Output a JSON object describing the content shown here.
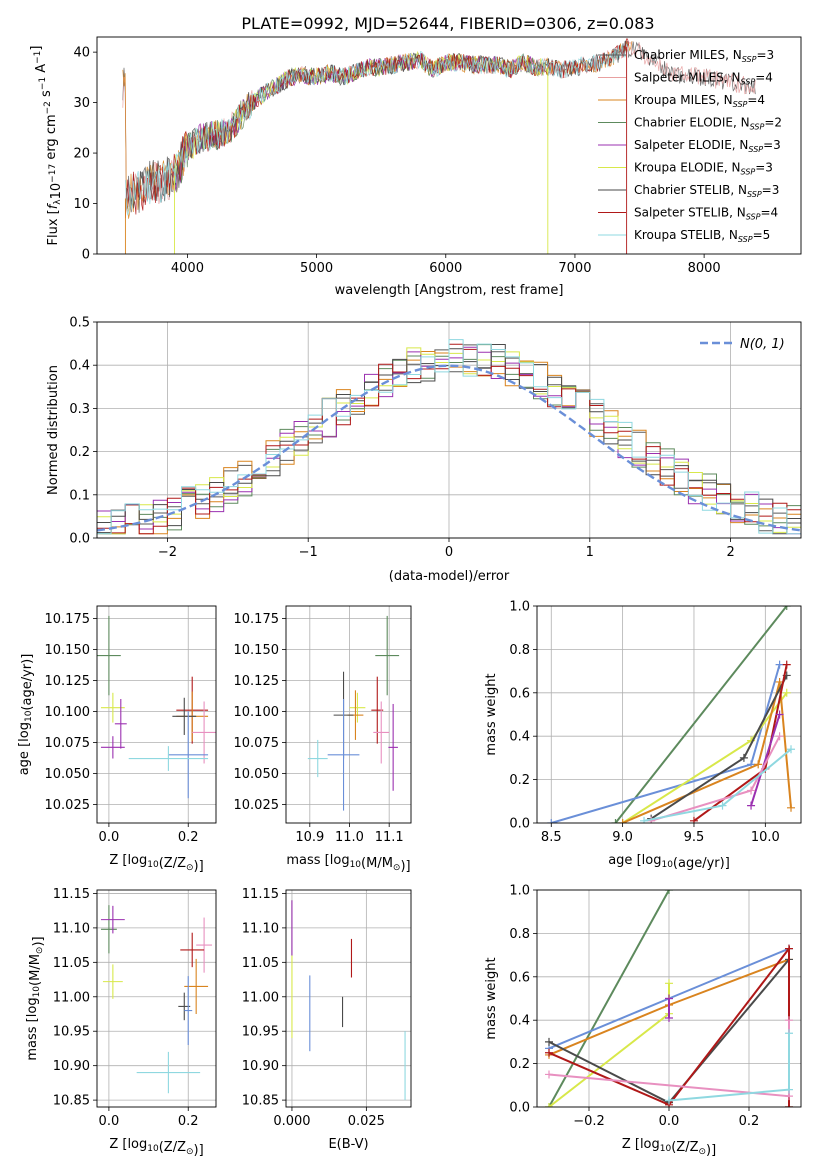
{
  "figure": {
    "title": "PLATE=0992, MJD=52644, FIBERID=0306, z=0.083"
  },
  "colors": {
    "chabrier_miles": "#5a5a5a",
    "salpeter_miles": "#e8a0a0",
    "kroupa_miles": "#d9841f",
    "chabrier_elodie": "#5d8a5d",
    "salpeter_elodie": "#9b30b0",
    "kroupa_elodie": "#d8e84a",
    "chabrier_stelib": "#4a4a4a",
    "salpeter_stelib": "#b01818",
    "kroupa_stelib": "#8fd8e0",
    "normal_curve": "#6a8fd8",
    "pink": "#e890c0",
    "blue": "#6a8fd8"
  },
  "chart_data": [
    {
      "id": "spectrum",
      "type": "line",
      "xlabel": "wavelength [Angstrom, rest frame]",
      "ylabel": "Flux [f_λ10^-17 erg cm^-2 s^-1 A^-1]",
      "xlim": [
        3300,
        8750
      ],
      "ylim": [
        0,
        43
      ],
      "xticks": [
        4000,
        5000,
        6000,
        7000,
        8000
      ],
      "yticks": [
        0,
        10,
        20,
        30,
        40
      ],
      "grid": false,
      "legend_position": "top-right",
      "legend": [
        {
          "label": "Chabrier MILES, N",
          "sub": "SSP",
          "suffix": "=3",
          "color_key": "chabrier_miles"
        },
        {
          "label": "Salpeter MILES, N",
          "sub": "SSP",
          "suffix": "=4",
          "color_key": "salpeter_miles"
        },
        {
          "label": "Kroupa MILES, N",
          "sub": "SSP",
          "suffix": "=4",
          "color_key": "kroupa_miles"
        },
        {
          "label": "Chabrier ELODIE, N",
          "sub": "SSP",
          "suffix": "=2",
          "color_key": "chabrier_elodie"
        },
        {
          "label": "Salpeter ELODIE, N",
          "sub": "SSP",
          "suffix": "=3",
          "color_key": "salpeter_elodie"
        },
        {
          "label": "Kroupa ELODIE, N",
          "sub": "SSP",
          "suffix": "=3",
          "color_key": "kroupa_elodie"
        },
        {
          "label": "Chabrier STELIB, N",
          "sub": "SSP",
          "suffix": "=3",
          "color_key": "chabrier_stelib"
        },
        {
          "label": "Salpeter STELIB, N",
          "sub": "SSP",
          "suffix": "=4",
          "color_key": "salpeter_stelib"
        },
        {
          "label": "Kroupa STELIB, N",
          "sub": "SSP",
          "suffix": "=5",
          "color_key": "kroupa_stelib"
        }
      ],
      "continuum": [
        [
          3520,
          11
        ],
        [
          3600,
          12
        ],
        [
          3700,
          14
        ],
        [
          3800,
          14.5
        ],
        [
          3900,
          15.5
        ],
        [
          4000,
          21
        ],
        [
          4100,
          23
        ],
        [
          4200,
          23.5
        ],
        [
          4300,
          24
        ],
        [
          4400,
          27
        ],
        [
          4500,
          30
        ],
        [
          4600,
          32
        ],
        [
          4700,
          33.5
        ],
        [
          4800,
          35
        ],
        [
          4900,
          35.5
        ],
        [
          5000,
          35
        ],
        [
          5100,
          36
        ],
        [
          5200,
          35
        ],
        [
          5300,
          36
        ],
        [
          5400,
          37
        ],
        [
          5500,
          37
        ],
        [
          5600,
          37.5
        ],
        [
          5700,
          38
        ],
        [
          5800,
          38.5
        ],
        [
          5900,
          36.5
        ],
        [
          6000,
          38
        ],
        [
          6100,
          38
        ],
        [
          6200,
          37.5
        ],
        [
          6300,
          37.5
        ],
        [
          6400,
          37.5
        ],
        [
          6500,
          36.5
        ],
        [
          6600,
          38
        ],
        [
          6700,
          37
        ],
        [
          6800,
          37
        ],
        [
          6900,
          36.5
        ],
        [
          7000,
          37
        ],
        [
          7100,
          37.5
        ],
        [
          7200,
          38
        ],
        [
          7300,
          39
        ],
        [
          7400,
          41
        ],
        [
          7500,
          40
        ],
        [
          7600,
          38
        ],
        [
          7700,
          36.5
        ],
        [
          7800,
          35.5
        ],
        [
          7900,
          35.5
        ],
        [
          8000,
          35
        ],
        [
          8100,
          34.5
        ],
        [
          8200,
          34
        ],
        [
          8300,
          33.5
        ],
        [
          8400,
          33
        ]
      ],
      "series": [
        {
          "name": "Chabrier MILES",
          "range": [
            3500,
            8400
          ],
          "color_key": "chabrier_miles"
        },
        {
          "name": "Salpeter MILES",
          "range": [
            3500,
            8400
          ],
          "color_key": "salpeter_miles"
        },
        {
          "name": "Kroupa MILES",
          "range": [
            3500,
            7450
          ],
          "color_key": "kroupa_miles"
        },
        {
          "name": "Chabrier ELODIE",
          "range": [
            3900,
            6800
          ],
          "color_key": "chabrier_elodie"
        },
        {
          "name": "Salpeter ELODIE",
          "range": [
            3900,
            6800
          ],
          "color_key": "salpeter_elodie"
        },
        {
          "name": "Kroupa ELODIE",
          "range": [
            3900,
            6800
          ],
          "color_key": "kroupa_elodie"
        },
        {
          "name": "Chabrier STELIB",
          "range": [
            3520,
            7400
          ],
          "color_key": "chabrier_stelib"
        },
        {
          "name": "Salpeter STELIB",
          "range": [
            3520,
            7420
          ],
          "color_key": "salpeter_stelib"
        },
        {
          "name": "Kroupa STELIB",
          "range": [
            3520,
            7400
          ],
          "color_key": "kroupa_stelib"
        }
      ]
    },
    {
      "id": "residuals",
      "type": "line",
      "xlabel": "(data-model)/error",
      "ylabel": "Normed distribution",
      "xlim": [
        -2.5,
        2.5
      ],
      "ylim": [
        0,
        0.5
      ],
      "xticks": [
        -2,
        -1,
        0,
        1,
        2
      ],
      "yticks": [
        0.0,
        0.1,
        0.2,
        0.3,
        0.4,
        0.5
      ],
      "grid": true,
      "legend_position": "top-right",
      "legend_label": "N(0, 1)",
      "bin_edges_start": -2.5,
      "bin_width": 0.1,
      "normal": {
        "mean": 0,
        "sigma": 1,
        "color_key": "normal_curve"
      },
      "histograms": [
        {
          "color_key": "chabrier_miles",
          "seed": 1
        },
        {
          "color_key": "kroupa_miles",
          "seed": 2
        },
        {
          "color_key": "chabrier_elodie",
          "seed": 3
        },
        {
          "color_key": "salpeter_elodie",
          "seed": 4
        },
        {
          "color_key": "kroupa_elodie",
          "seed": 5
        },
        {
          "color_key": "chabrier_stelib",
          "seed": 6
        },
        {
          "color_key": "salpeter_stelib",
          "seed": 7
        },
        {
          "color_key": "kroupa_stelib",
          "seed": 8
        }
      ]
    },
    {
      "id": "age_vs_Z",
      "type": "scatter",
      "xlabel": "Z [log10(Z/Z☉)]",
      "ylabel": "age [log10(age/yr)]",
      "xlim": [
        -0.03,
        0.27
      ],
      "ylim": [
        10.01,
        10.185
      ],
      "xticks": [
        0.0,
        0.2
      ],
      "yticks": [
        10.025,
        10.05,
        10.075,
        10.1,
        10.125,
        10.15,
        10.175
      ],
      "grid": true,
      "points": [
        {
          "x": 0.0,
          "y": 10.145,
          "xerr": 0.03,
          "yerr": 0.032,
          "color_key": "chabrier_elodie"
        },
        {
          "x": 0.01,
          "y": 10.103,
          "xerr": 0.03,
          "yerr": 0.012,
          "color_key": "kroupa_elodie"
        },
        {
          "x": 0.01,
          "y": 10.071,
          "xerr": 0.03,
          "yerr": 0.009,
          "color_key": "salpeter_elodie"
        },
        {
          "x": 0.03,
          "y": 10.09,
          "xerr": 0.015,
          "yerr": 0.02,
          "color_key": "salpeter_elodie"
        },
        {
          "x": 0.21,
          "y": 10.101,
          "xerr": 0.04,
          "yerr": 0.027,
          "color_key": "salpeter_stelib"
        },
        {
          "x": 0.21,
          "y": 10.096,
          "xerr": 0.04,
          "yerr": 0.02,
          "color_key": "kroupa_miles"
        },
        {
          "x": 0.19,
          "y": 10.096,
          "xerr": 0.03,
          "yerr": 0.015,
          "color_key": "chabrier_stelib"
        },
        {
          "x": 0.24,
          "y": 10.083,
          "xerr": 0.03,
          "yerr": 0.025,
          "color_key": "pink"
        },
        {
          "x": 0.2,
          "y": 10.065,
          "xerr": 0.05,
          "yerr": 0.035,
          "color_key": "blue"
        },
        {
          "x": 0.15,
          "y": 10.062,
          "xerr": 0.1,
          "yerr": 0.01,
          "color_key": "kroupa_stelib"
        }
      ]
    },
    {
      "id": "age_vs_mass",
      "type": "scatter",
      "xlabel": "mass [log10(M/M☉)]",
      "ylabel": "",
      "xlim": [
        10.84,
        11.155
      ],
      "ylim": [
        10.01,
        10.185
      ],
      "xticks": [
        10.9,
        11.0,
        11.1
      ],
      "yticks": [
        10.025,
        10.05,
        10.075,
        10.1,
        10.125,
        10.15,
        10.175
      ],
      "grid": true,
      "points": [
        {
          "x": 11.095,
          "y": 10.145,
          "xerr": 0.03,
          "yerr": 0.032,
          "color_key": "chabrier_elodie"
        },
        {
          "x": 11.02,
          "y": 10.103,
          "xerr": 0.02,
          "yerr": 0.012,
          "color_key": "kroupa_elodie"
        },
        {
          "x": 11.11,
          "y": 10.071,
          "xerr": 0.012,
          "yerr": 0.035,
          "color_key": "salpeter_elodie"
        },
        {
          "x": 11.07,
          "y": 10.101,
          "xerr": 0.015,
          "yerr": 0.027,
          "color_key": "salpeter_stelib"
        },
        {
          "x": 11.015,
          "y": 10.097,
          "xerr": 0.02,
          "yerr": 0.02,
          "color_key": "kroupa_miles"
        },
        {
          "x": 10.985,
          "y": 10.097,
          "xerr": 0.025,
          "yerr": 0.035,
          "color_key": "chabrier_stelib"
        },
        {
          "x": 11.08,
          "y": 10.083,
          "xerr": 0.02,
          "yerr": 0.025,
          "color_key": "pink"
        },
        {
          "x": 10.92,
          "y": 10.062,
          "xerr": 0.025,
          "yerr": 0.015,
          "color_key": "kroupa_stelib"
        },
        {
          "x": 10.985,
          "y": 10.065,
          "xerr": 0.04,
          "yerr": 0.045,
          "color_key": "blue"
        }
      ]
    },
    {
      "id": "weight_vs_age",
      "type": "line",
      "xlabel": "age [log10(age/yr)]",
      "ylabel": "mass weight",
      "xlim": [
        8.4,
        10.25
      ],
      "ylim": [
        0,
        1.0
      ],
      "xticks": [
        8.5,
        9.0,
        9.5,
        10.0
      ],
      "yticks": [
        0.0,
        0.2,
        0.4,
        0.6,
        0.8,
        1.0
      ],
      "grid": true,
      "series": [
        {
          "color_key": "chabrier_elodie",
          "x": [
            8.95,
            10.15
          ],
          "y": [
            0.0,
            1.0
          ]
        },
        {
          "color_key": "blue",
          "x": [
            8.5,
            9.9,
            10.1
          ],
          "y": [
            0.0,
            0.27,
            0.73
          ]
        },
        {
          "color_key": "kroupa_elodie",
          "x": [
            9.0,
            9.9,
            10.15
          ],
          "y": [
            0.0,
            0.38,
            0.6
          ]
        },
        {
          "color_key": "kroupa_miles",
          "x": [
            9.0,
            9.95,
            10.1,
            10.18
          ],
          "y": [
            0.0,
            0.27,
            0.65,
            0.07
          ]
        },
        {
          "color_key": "chabrier_stelib",
          "x": [
            9.2,
            9.85,
            10.15
          ],
          "y": [
            0.02,
            0.3,
            0.68
          ]
        },
        {
          "color_key": "salpeter_stelib",
          "x": [
            9.5,
            10.0,
            10.15
          ],
          "y": [
            0.01,
            0.25,
            0.73
          ]
        },
        {
          "color_key": "salpeter_elodie",
          "x": [
            9.9,
            10.1
          ],
          "y": [
            0.08,
            0.5
          ]
        },
        {
          "color_key": "pink",
          "x": [
            9.2,
            9.9,
            10.1
          ],
          "y": [
            0.01,
            0.15,
            0.4
          ]
        },
        {
          "color_key": "kroupa_stelib",
          "x": [
            9.15,
            9.7,
            10.18
          ],
          "y": [
            0.01,
            0.08,
            0.34
          ]
        }
      ]
    },
    {
      "id": "mass_vs_Z",
      "type": "scatter",
      "xlabel": "Z [log10(Z/Z☉)]",
      "ylabel": "mass [log10(M/M☉)]",
      "xlim": [
        -0.03,
        0.27
      ],
      "ylim": [
        10.84,
        11.155
      ],
      "xticks": [
        0.0,
        0.2
      ],
      "yticks": [
        10.85,
        10.9,
        10.95,
        11.0,
        11.05,
        11.1,
        11.15
      ],
      "grid": true,
      "points": [
        {
          "x": 0.0,
          "y": 11.098,
          "xerr": 0.02,
          "yerr": 0.035,
          "color_key": "chabrier_elodie"
        },
        {
          "x": 0.01,
          "y": 11.112,
          "xerr": 0.03,
          "yerr": 0.02,
          "color_key": "salpeter_elodie"
        },
        {
          "x": 0.01,
          "y": 11.022,
          "xerr": 0.025,
          "yerr": 0.025,
          "color_key": "kroupa_elodie"
        },
        {
          "x": 0.24,
          "y": 11.075,
          "xerr": 0.02,
          "yerr": 0.04,
          "color_key": "pink"
        },
        {
          "x": 0.21,
          "y": 11.068,
          "xerr": 0.03,
          "yerr": 0.025,
          "color_key": "salpeter_stelib"
        },
        {
          "x": 0.22,
          "y": 11.015,
          "xerr": 0.03,
          "yerr": 0.04,
          "color_key": "kroupa_miles"
        },
        {
          "x": 0.19,
          "y": 10.986,
          "xerr": 0.015,
          "yerr": 0.02,
          "color_key": "chabrier_stelib"
        },
        {
          "x": 0.2,
          "y": 10.98,
          "xerr": 0.01,
          "yerr": 0.05,
          "color_key": "blue"
        },
        {
          "x": 0.15,
          "y": 10.89,
          "xerr": 0.08,
          "yerr": 0.03,
          "color_key": "kroupa_stelib"
        }
      ]
    },
    {
      "id": "mass_vs_ebv",
      "type": "scatter",
      "xlabel": "E(B-V)",
      "ylabel": "",
      "xlim": [
        -0.002,
        0.04
      ],
      "ylim": [
        10.84,
        11.155
      ],
      "xticks": [
        0.0,
        0.025
      ],
      "xtick_labels": [
        "0.000",
        "0.025"
      ],
      "yticks": [
        10.85,
        10.9,
        10.95,
        11.0,
        11.05,
        11.1,
        11.15
      ],
      "grid": true,
      "points": [
        {
          "x": 0.0,
          "y": 11.1,
          "xerr": 0,
          "yerr": 0.04,
          "color_key": "chabrier_elodie"
        },
        {
          "x": 0.0,
          "y": 11.0,
          "xerr": 0,
          "yerr": 0.06,
          "color_key": "kroupa_elodie"
        },
        {
          "x": 0.0,
          "y": 11.1,
          "xerr": 0,
          "yerr": 0.04,
          "color_key": "salpeter_elodie"
        },
        {
          "x": 0.006,
          "y": 10.976,
          "xerr": 0,
          "yerr": 0.055,
          "color_key": "blue"
        },
        {
          "x": 0.017,
          "y": 10.978,
          "xerr": 0,
          "yerr": 0.022,
          "color_key": "chabrier_stelib"
        },
        {
          "x": 0.02,
          "y": 11.056,
          "xerr": 0,
          "yerr": 0.028,
          "color_key": "salpeter_stelib"
        },
        {
          "x": 0.038,
          "y": 10.9,
          "xerr": 0,
          "yerr": 0.05,
          "color_key": "kroupa_stelib"
        }
      ]
    },
    {
      "id": "weight_vs_Z",
      "type": "line",
      "xlabel": "Z [log10(Z/Z☉)]",
      "ylabel": "mass weight",
      "xlim": [
        -0.33,
        0.33
      ],
      "ylim": [
        0,
        1.0
      ],
      "xticks": [
        -0.2,
        0.0,
        0.2
      ],
      "yticks": [
        0.0,
        0.2,
        0.4,
        0.6,
        0.8,
        1.0
      ],
      "grid": true,
      "series": [
        {
          "color_key": "chabrier_elodie",
          "x": [
            -0.3,
            0.0
          ],
          "y": [
            0.0,
            1.0
          ]
        },
        {
          "color_key": "blue",
          "x": [
            -0.3,
            0.0,
            0.3,
            0.3
          ],
          "y": [
            0.27,
            0.5,
            0.73,
            0.0
          ]
        },
        {
          "color_key": "kroupa_miles",
          "x": [
            -0.3,
            0.0,
            0.3,
            0.3
          ],
          "y": [
            0.24,
            0.47,
            0.68,
            0.0
          ]
        },
        {
          "color_key": "kroupa_elodie",
          "x": [
            -0.3,
            0.0,
            0.0
          ],
          "y": [
            0.0,
            0.43,
            0.57
          ]
        },
        {
          "color_key": "chabrier_stelib",
          "x": [
            -0.3,
            0.0,
            0.3
          ],
          "y": [
            0.3,
            0.02,
            0.68
          ]
        },
        {
          "color_key": "salpeter_stelib",
          "x": [
            -0.3,
            0.0,
            0.3,
            0.3
          ],
          "y": [
            0.25,
            0.01,
            0.73,
            0.0
          ]
        },
        {
          "color_key": "salpeter_elodie",
          "x": [
            0.0,
            0.0
          ],
          "y": [
            0.41,
            0.5
          ]
        },
        {
          "color_key": "pink",
          "x": [
            -0.3,
            0.3,
            0.3
          ],
          "y": [
            0.15,
            0.05,
            0.4
          ]
        },
        {
          "color_key": "kroupa_stelib",
          "x": [
            0.0,
            0.3,
            0.3
          ],
          "y": [
            0.03,
            0.08,
            0.34
          ]
        }
      ]
    }
  ]
}
